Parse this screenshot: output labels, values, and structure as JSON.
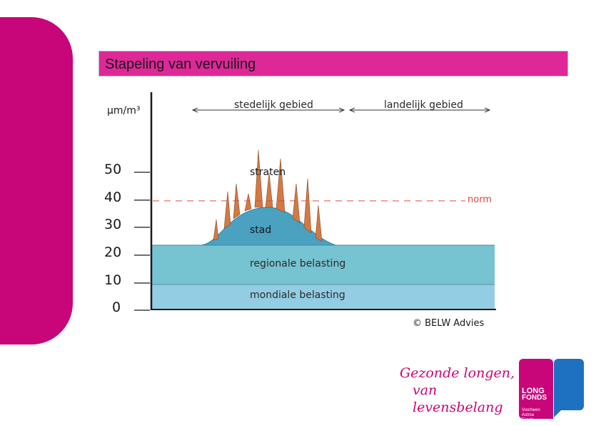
{
  "slide": {
    "title": "Stapeling van vervuiling",
    "brand_color": "#c8067a",
    "title_bar_color": "#de2898"
  },
  "diagram": {
    "unit_label": "µm/m³",
    "y_ticks": [
      "50",
      "40",
      "30",
      "20",
      "10",
      "0"
    ],
    "regions": {
      "urban": "stedelijk gebied",
      "rural": "landelijk gebied"
    },
    "norm_label": "norm",
    "layers": {
      "streets": "straten",
      "city": "stad",
      "regional": "regionale belasting",
      "global": "mondiale belasting"
    },
    "copyright": "© BELW Advies",
    "colors": {
      "global_layer": "#93cde4",
      "regional_layer": "#76c3d2",
      "city_layer": "#4aa1c0",
      "street_spikes": "#d27a44",
      "norm_line": "#e04a3a"
    }
  },
  "footer": {
    "slogan_line1": "Gezonde longen,",
    "slogan_line2": "van levensbelang",
    "logo_word1": "LONG",
    "logo_word2": "FONDS",
    "logo_sub1": "Voorheen",
    "logo_sub2": "Astma Fonds"
  }
}
